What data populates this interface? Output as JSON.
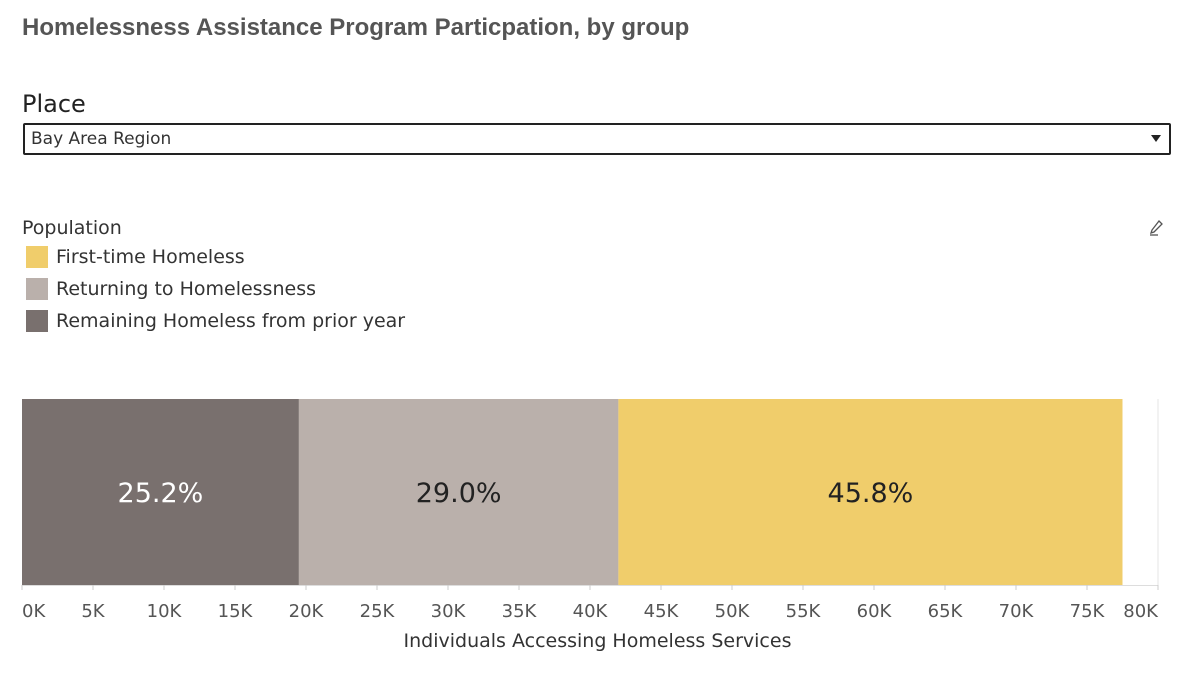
{
  "title": "Homelessness Assistance Program Particpation, by group",
  "filter": {
    "label": "Place",
    "selected": "Bay Area Region"
  },
  "legend": {
    "title": "Population",
    "items": [
      {
        "label": "First-time Homeless",
        "color": "#f0cd6b"
      },
      {
        "label": "Returning to Homelessness",
        "color": "#bab0ab"
      },
      {
        "label": "Remaining Homeless from prior year",
        "color": "#79706e"
      }
    ]
  },
  "chart_data": {
    "type": "bar",
    "orientation": "horizontal",
    "stacked": true,
    "xlabel": "Individuals Accessing Homeless Services",
    "xlim": [
      0,
      80000
    ],
    "xticks": [
      "0K",
      "5K",
      "10K",
      "15K",
      "20K",
      "25K",
      "30K",
      "35K",
      "40K",
      "45K",
      "50K",
      "55K",
      "60K",
      "65K",
      "70K",
      "75K",
      "80K"
    ],
    "series": [
      {
        "name": "Remaining Homeless from prior year",
        "value": 19500,
        "label": "25.2%",
        "color": "#79706e",
        "label_color": "#ffffff"
      },
      {
        "name": "Returning to Homelessness",
        "value": 22500,
        "label": "29.0%",
        "color": "#bab0ab",
        "label_color": "#222222"
      },
      {
        "name": "First-time Homeless",
        "value": 35500,
        "label": "45.8%",
        "color": "#f0cd6b",
        "label_color": "#222222"
      }
    ]
  }
}
